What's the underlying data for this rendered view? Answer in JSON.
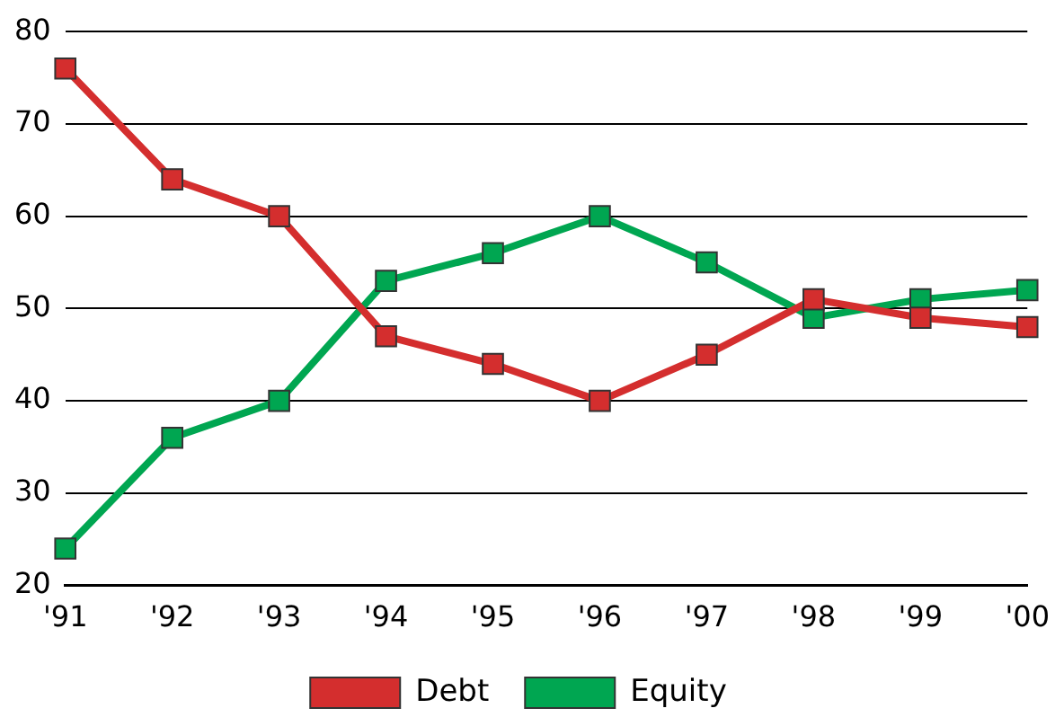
{
  "chart_data": {
    "type": "line",
    "categories": [
      "'91",
      "'92",
      "'93",
      "'94",
      "'95",
      "'96",
      "'97",
      "'98",
      "'99",
      "'00"
    ],
    "series": [
      {
        "name": "Debt",
        "color": "#d42e2e",
        "values": [
          76,
          64,
          60,
          47,
          44,
          40,
          45,
          51,
          49,
          48
        ]
      },
      {
        "name": "Equity",
        "color": "#00a651",
        "values": [
          24,
          36,
          40,
          53,
          56,
          60,
          55,
          49,
          51,
          52
        ]
      }
    ],
    "ylim": [
      20,
      80
    ],
    "yticks": [
      20,
      30,
      40,
      50,
      60,
      70,
      80
    ],
    "grid": "y",
    "legend": "bottom",
    "marker": "square",
    "line_style": "solid"
  }
}
